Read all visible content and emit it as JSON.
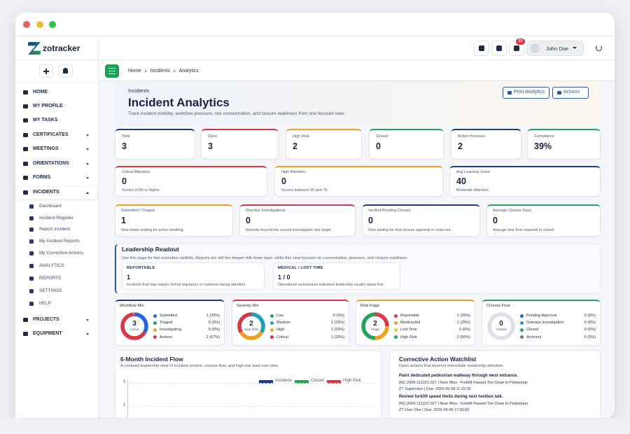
{
  "brand": "zotracker",
  "topbar": {
    "notifications": "21",
    "user": "John Doe"
  },
  "menu": [
    {
      "label": "HOME",
      "y": 132
    },
    {
      "label": "MY PROFILE"
    },
    {
      "label": "MY TASKS"
    },
    {
      "label": "CERTIFICATES",
      "caret": "down"
    },
    {
      "label": "MEETINGS",
      "caret": "down"
    },
    {
      "label": "ORIENTATIONS",
      "caret": "down"
    },
    {
      "label": "FORMS",
      "caret": "down"
    },
    {
      "label": "INCIDENTS",
      "caret": "up"
    }
  ],
  "submenu": [
    "Dashboard",
    "Incident Register",
    "Report Incident",
    "My Incident Reports",
    "My Corrective Actions",
    "ANALYTICS",
    "REPORTS",
    "SETTINGS",
    "HELP"
  ],
  "menu_after": [
    {
      "label": "PROJECTS",
      "caret": "down"
    },
    {
      "label": "EQUIPMENT",
      "caret": "down"
    }
  ],
  "breadcrumb": [
    "Home",
    "Incidents",
    "Analytics"
  ],
  "header": {
    "eyebrow": "Incidents",
    "title": "Incident Analytics",
    "subtitle": "Track incident visibility, workflow pressure, risk concentration, and closure readiness from one focused view.",
    "buttons": [
      "Print Analytics",
      "Actions"
    ]
  },
  "kpis": [
    {
      "label": "Total",
      "value": "3",
      "color": "#1e3a8a"
    },
    {
      "label": "Open",
      "value": "3",
      "color": "#dc3545"
    },
    {
      "label": "High Risk",
      "value": "2",
      "color": "#f0a020"
    },
    {
      "label": "Closed",
      "value": "0",
      "color": "#22a55b"
    },
    {
      "label": "Action Pressure",
      "value": "2",
      "color": "#1e3a8a"
    },
    {
      "label": "Compliance",
      "value": "39%",
      "color": "#22a55b"
    }
  ],
  "attention": [
    {
      "label": "Critical Attention",
      "value": "0",
      "note": "Scores of 80 or higher.",
      "color": "#dc3545"
    },
    {
      "label": "High Attention",
      "value": "0",
      "note": "Scores between 60 and 79.",
      "color": "#f0a020"
    },
    {
      "label": "Avg Learning Score",
      "value": "40",
      "note": "Moderate Attention",
      "color": "#1e3a8a"
    }
  ],
  "workflow": [
    {
      "label": "Submitted / Triaged",
      "value": "1",
      "note": "New intake waiting for active handling.",
      "color": "#f0a020"
    },
    {
      "label": "Overdue Investigations",
      "value": "0",
      "note": "Records beyond the current investigation due target.",
      "color": "#dc3545"
    },
    {
      "label": "Verified Pending Closure",
      "value": "0",
      "note": "Files waiting for final closure approval or close-out.",
      "color": "#1e3a8a"
    },
    {
      "label": "Average Closure Days",
      "value": "0",
      "note": "Average time from reported to closed.",
      "color": "#22a55b"
    }
  ],
  "readout": {
    "title": "Leadership Readout",
    "description": "Use this page for fast executive visibility. Reports are still the deeper drill-down layer, while this view focuses on concentration, pressure, and closure readiness.",
    "cards": [
      {
        "label": "REPORTABLE",
        "value": "1",
        "note": "Incidents that may require formal regulatory or customer-facing attention."
      },
      {
        "label": "MEDICAL / LOST TIME",
        "value": "1 / 0",
        "note": "Operational seriousness indicators leadership usually wants first."
      }
    ]
  },
  "mixes": [
    {
      "title": "Workflow Mix",
      "center_value": "3",
      "center_label": "Active",
      "color": "#1e3a8a",
      "items": [
        {
          "name": "Submitted",
          "color": "#2563eb",
          "value": 1,
          "label": "1 (33%)"
        },
        {
          "name": "Triaged",
          "color": "#22a55b",
          "value": 0,
          "label": "0 (0%)"
        },
        {
          "name": "Investigating",
          "color": "#f0a020",
          "value": 0,
          "label": "0 (0%)"
        },
        {
          "name": "Actions",
          "color": "#dc3545",
          "value": 2,
          "label": "2 (67%)"
        }
      ]
    },
    {
      "title": "Severity Mix",
      "center_value": "2",
      "center_label": "High Risk",
      "color": "#dc3545",
      "items": [
        {
          "name": "Low",
          "color": "#22a55b",
          "value": 0,
          "label": "0 (0%)"
        },
        {
          "name": "Medium",
          "color": "#17a2b8",
          "value": 1,
          "label": "1 (33%)"
        },
        {
          "name": "High",
          "color": "#f0a020",
          "value": 1,
          "label": "1 (33%)"
        },
        {
          "name": "Critical",
          "color": "#dc3545",
          "value": 1,
          "label": "1 (33%)"
        }
      ]
    },
    {
      "title": "Risk Flags",
      "center_value": "2",
      "center_label": "Flags",
      "color": "#f0a020",
      "items": [
        {
          "name": "Reportable",
          "color": "#dc3545",
          "value": 1,
          "label": "1 (25%)"
        },
        {
          "name": "Medical Aid",
          "color": "#f0a020",
          "value": 1,
          "label": "1 (25%)"
        },
        {
          "name": "Lost Time",
          "color": "#f4c430",
          "value": 0,
          "label": "0 (0%)"
        },
        {
          "name": "High Risk",
          "color": "#22a55b",
          "value": 2,
          "label": "2 (50%)"
        }
      ]
    },
    {
      "title": "Closure Flow",
      "center_value": "0",
      "center_label": "Closed",
      "color": "#22a55b",
      "items": [
        {
          "name": "Pending Approval",
          "color": "#2563eb",
          "value": 0,
          "label": "0 (0%)"
        },
        {
          "name": "Overdue Investigation",
          "color": "#17a2b8",
          "value": 0,
          "label": "0 (0%)"
        },
        {
          "name": "Closed",
          "color": "#22a55b",
          "value": 0,
          "label": "0 (0%)"
        },
        {
          "name": "Archived",
          "color": "#6b7280",
          "value": 0,
          "label": "0 (0%)"
        }
      ]
    }
  ],
  "flow": {
    "type": "line",
    "title": "6-Month Incident Flow",
    "subtitle": "A compact leadership view of incident volume, closure flow, and high-risk load over time.",
    "ylim": [
      0,
      3
    ],
    "yticks": [
      3,
      2
    ],
    "series": [
      {
        "name": "Incidents",
        "color": "#1e3a8a"
      },
      {
        "name": "Closed",
        "color": "#22a55b"
      },
      {
        "name": "High Risk",
        "color": "#dc3545"
      }
    ]
  },
  "watchlist": {
    "title": "Corrective Action Watchlist",
    "subtitle": "Open actions that deserve immediate leadership attention.",
    "items": [
      {
        "title": "Paint dedicated pedestrian walkway through west entrance.",
        "ref": "INC-2606-111221-327 | Near Miss - Forklift Passed Too Close to Pedestrian",
        "owner": "ZT Supervisor | Due: 2026-06-08 11:22:00"
      },
      {
        "title": "Review forklift speed limits during next toolbox talk.",
        "ref": "INC-2606-111221-327 | Near Miss - Forklift Passed Too Close to Pedestrian",
        "owner": "ZT User One | Due: 2026-06-09 17:00:00"
      }
    ]
  }
}
